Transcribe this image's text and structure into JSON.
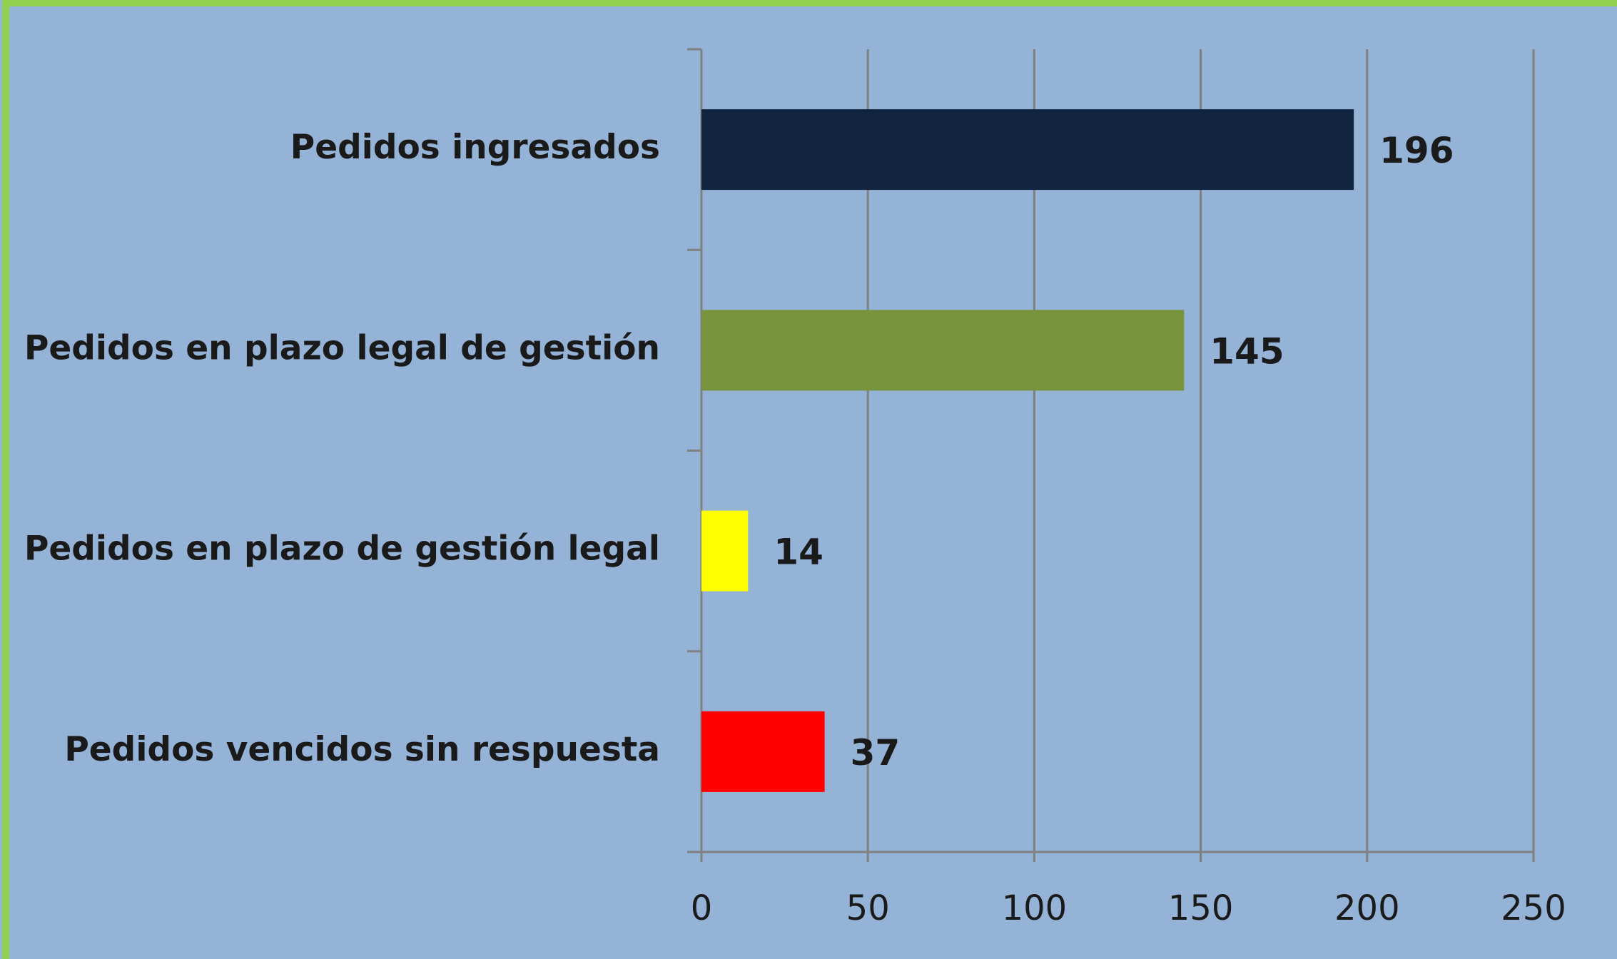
{
  "chart_data": {
    "type": "hbar",
    "categories": [
      "Pedidos ingresados",
      "Pedidos en plazo legal de gestión",
      "Pedidos en plazo de gestión legal",
      "Pedidos vencidos sin respuesta"
    ],
    "values": [
      196,
      145,
      14,
      37
    ],
    "colors": [
      "#10233f",
      "#77933c",
      "#ffff00",
      "#ff0000"
    ],
    "xlim": [
      0,
      250
    ],
    "xticks": [
      0,
      50,
      100,
      150,
      200,
      250
    ],
    "grid": true
  }
}
